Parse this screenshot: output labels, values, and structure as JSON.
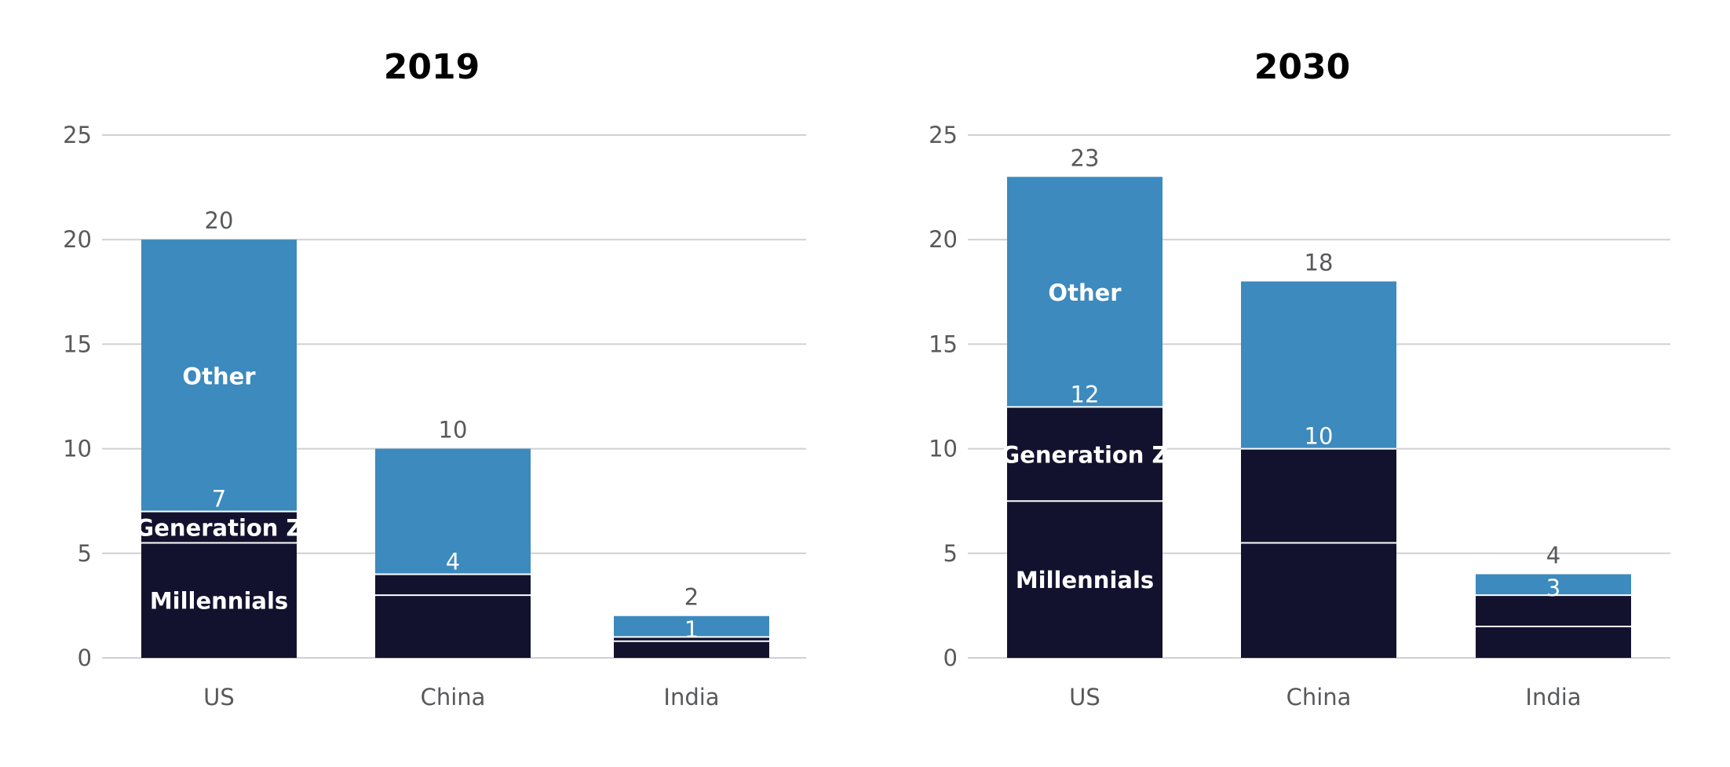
{
  "colors": {
    "millennials": "#13122e",
    "generation_z": "#13122e",
    "other": "#3c8abe",
    "grid": "#d0d0d4",
    "divider": "#ffffff"
  },
  "chart_data": [
    {
      "type": "bar",
      "stacked": true,
      "title": "2019",
      "categories": [
        "US",
        "China",
        "India"
      ],
      "ylim": [
        0,
        25
      ],
      "yticks": [
        0,
        5,
        10,
        15,
        20,
        25
      ],
      "grid": true,
      "series": [
        {
          "name": "Millennials",
          "values": [
            5.5,
            3,
            0.8
          ]
        },
        {
          "name": "Generation Z",
          "values": [
            1.5,
            1,
            0.2
          ]
        },
        {
          "name": "Other",
          "values": [
            13,
            6,
            1
          ]
        }
      ],
      "boundary_labels": [
        "7",
        "4",
        "1"
      ],
      "totals": [
        "20",
        "10",
        "2"
      ]
    },
    {
      "type": "bar",
      "stacked": true,
      "title": "2030",
      "categories": [
        "US",
        "China",
        "India"
      ],
      "ylim": [
        0,
        25
      ],
      "yticks": [
        0,
        5,
        10,
        15,
        20,
        25
      ],
      "grid": true,
      "series": [
        {
          "name": "Millennials",
          "values": [
            7.5,
            5.5,
            1.5
          ]
        },
        {
          "name": "Generation Z",
          "values": [
            4.5,
            4.5,
            1.5
          ]
        },
        {
          "name": "Other",
          "values": [
            11,
            8,
            1
          ]
        }
      ],
      "boundary_labels": [
        "12",
        "10",
        "3"
      ],
      "totals": [
        "23",
        "18",
        "4"
      ]
    }
  ]
}
